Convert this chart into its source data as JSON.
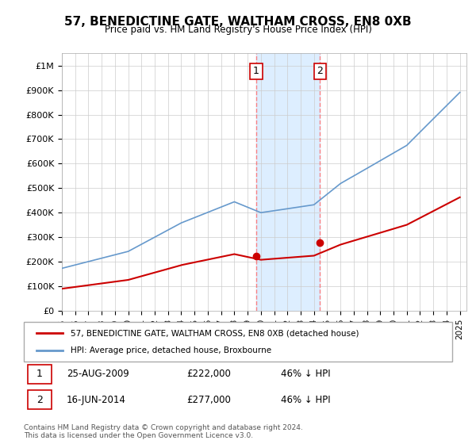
{
  "title": "57, BENEDICTINE GATE, WALTHAM CROSS, EN8 0XB",
  "subtitle": "Price paid vs. HM Land Registry's House Price Index (HPI)",
  "ylabel_ticks": [
    "£0",
    "£100K",
    "£200K",
    "£300K",
    "£400K",
    "£500K",
    "£600K",
    "£700K",
    "£800K",
    "£900K",
    "£1M"
  ],
  "ytick_vals": [
    0,
    100000,
    200000,
    300000,
    400000,
    500000,
    600000,
    700000,
    800000,
    900000,
    1000000
  ],
  "ylim": [
    0,
    1050000
  ],
  "xlim_start": 1995.0,
  "xlim_end": 2025.5,
  "hpi_color": "#6699cc",
  "price_color": "#cc0000",
  "transaction1_date": 2009.646,
  "transaction1_price": 222000,
  "transaction1_label": "1",
  "transaction2_date": 2014.458,
  "transaction2_price": 277000,
  "transaction2_label": "2",
  "legend_line1": "57, BENEDICTINE GATE, WALTHAM CROSS, EN8 0XB (detached house)",
  "legend_line2": "HPI: Average price, detached house, Broxbourne",
  "table_row1": [
    "1",
    "25-AUG-2009",
    "£222,000",
    "46% ↓ HPI"
  ],
  "table_row2": [
    "2",
    "16-JUN-2014",
    "£277,000",
    "46% ↓ HPI"
  ],
  "footer": "Contains HM Land Registry data © Crown copyright and database right 2024.\nThis data is licensed under the Open Government Licence v3.0.",
  "background_color": "#ffffff",
  "grid_color": "#cccccc",
  "shaded_region_color": "#ddeeff",
  "xtick_years": [
    1995,
    1996,
    1997,
    1998,
    1999,
    2000,
    2001,
    2002,
    2003,
    2004,
    2005,
    2006,
    2007,
    2008,
    2009,
    2010,
    2011,
    2012,
    2013,
    2014,
    2015,
    2016,
    2017,
    2018,
    2019,
    2020,
    2021,
    2022,
    2023,
    2024,
    2025
  ]
}
